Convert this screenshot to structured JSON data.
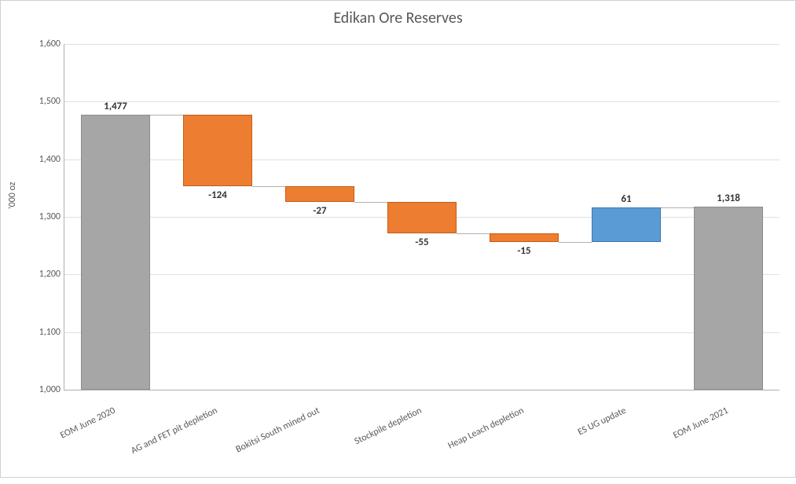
{
  "chart": {
    "type": "waterfall",
    "title": "Edikan Ore Reserves",
    "title_fontsize": 20,
    "title_color": "#595959",
    "y_axis_label": "'000 oz",
    "label_fontsize": 12,
    "label_color": "#595959",
    "ylim": [
      1000,
      1600
    ],
    "ytick_step": 100,
    "yticks": [
      1000,
      1100,
      1200,
      1300,
      1400,
      1500,
      1600
    ],
    "ytick_labels": [
      "1,000",
      "1,100",
      "1,200",
      "1,300",
      "1,400",
      "1,500",
      "1,600"
    ],
    "background_color": "#ffffff",
    "grid_color": "#e0e0e0",
    "axis_color": "#b0b0b0",
    "connector_color": "#b0b0b0",
    "data_label_fontsize": 13,
    "data_label_weight": "bold",
    "data_label_color": "#333333",
    "x_label_rotation": -26,
    "colors": {
      "total_fill": "#a6a6a6",
      "total_border": "#8c8c8c",
      "decrease_fill": "#ed7d31",
      "decrease_border": "#c45d17",
      "increase_fill": "#5b9bd5",
      "increase_border": "#3e78b3"
    },
    "bar_width_ratio": 0.68,
    "items": [
      {
        "label": "EOM June 2020",
        "display": "1,477",
        "value": 1477,
        "kind": "total",
        "start": 1000,
        "end": 1477
      },
      {
        "label": "AG and FET pit depletion",
        "display": "-124",
        "value": -124,
        "kind": "decrease",
        "start": 1353,
        "end": 1477
      },
      {
        "label": "Bokitsi South mined out",
        "display": "-27",
        "value": -27,
        "kind": "decrease",
        "start": 1326,
        "end": 1353
      },
      {
        "label": "Stockpile depletion",
        "display": "-55",
        "value": -55,
        "kind": "decrease",
        "start": 1271,
        "end": 1326
      },
      {
        "label": "Heap Leach depletion",
        "display": "-15",
        "value": -15,
        "kind": "decrease",
        "start": 1256,
        "end": 1271
      },
      {
        "label": "ES UG update",
        "display": "61",
        "value": 61,
        "kind": "increase",
        "start": 1256,
        "end": 1317
      },
      {
        "label": "EOM June 2021",
        "display": "1,318",
        "value": 1318,
        "kind": "total",
        "start": 1000,
        "end": 1318
      }
    ]
  }
}
